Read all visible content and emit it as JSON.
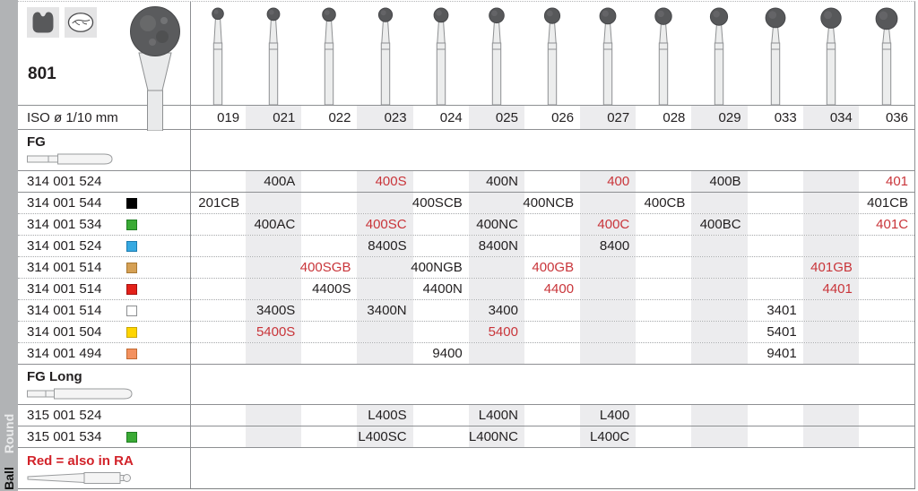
{
  "header": {
    "product_number": "801",
    "icons": [
      "crown-indication-icon",
      "tooth-indication-icon"
    ]
  },
  "sidebar": {
    "group_label": "Round",
    "shape_label": "Ball"
  },
  "table": {
    "iso_label": "ISO ø 1/10 mm",
    "columns": [
      "019",
      "021",
      "022",
      "023",
      "024",
      "025",
      "026",
      "027",
      "028",
      "029",
      "033",
      "034",
      "036"
    ],
    "footnote": "Red = also in RA",
    "sections": [
      {
        "id": "fg",
        "label": "FG",
        "rows": [
          {
            "code": "314 001 524",
            "square": null,
            "cells": [
              {
                "col": "021",
                "text": "400A",
                "red": false
              },
              {
                "col": "023",
                "text": "400S",
                "red": true
              },
              {
                "col": "025",
                "text": "400N",
                "red": false
              },
              {
                "col": "027",
                "text": "400",
                "red": true
              },
              {
                "col": "029",
                "text": "400B",
                "red": false
              },
              {
                "col": "036",
                "text": "401",
                "red": true
              }
            ]
          },
          {
            "code": "314 001 544",
            "square": "black",
            "cells": [
              {
                "col": "019",
                "text": "201CB",
                "red": false
              },
              {
                "col": "024",
                "text": "400SCB",
                "red": false
              },
              {
                "col": "026",
                "text": "400NCB",
                "red": false
              },
              {
                "col": "028",
                "text": "400CB",
                "red": false
              },
              {
                "col": "036",
                "text": "401CB",
                "red": false
              }
            ]
          },
          {
            "code": "314 001 534",
            "square": "green",
            "cells": [
              {
                "col": "021",
                "text": "400AC",
                "red": false
              },
              {
                "col": "023",
                "text": "400SC",
                "red": true
              },
              {
                "col": "025",
                "text": "400NC",
                "red": false
              },
              {
                "col": "027",
                "text": "400C",
                "red": true
              },
              {
                "col": "029",
                "text": "400BC",
                "red": false
              },
              {
                "col": "036",
                "text": "401C",
                "red": true
              }
            ]
          },
          {
            "code": "314 001 524",
            "square": "blue",
            "cells": [
              {
                "col": "023",
                "text": "8400S",
                "red": false
              },
              {
                "col": "025",
                "text": "8400N",
                "red": false
              },
              {
                "col": "027",
                "text": "8400",
                "red": false
              }
            ]
          },
          {
            "code": "314 001 514",
            "square": "gold",
            "cells": [
              {
                "col": "022",
                "text": "400SGB",
                "red": true
              },
              {
                "col": "024",
                "text": "400NGB",
                "red": false
              },
              {
                "col": "026",
                "text": "400GB",
                "red": true
              },
              {
                "col": "034",
                "text": "401GB",
                "red": true
              }
            ]
          },
          {
            "code": "314 001 514",
            "square": "red",
            "cells": [
              {
                "col": "022",
                "text": "4400S",
                "red": false
              },
              {
                "col": "024",
                "text": "4400N",
                "red": false
              },
              {
                "col": "026",
                "text": "4400",
                "red": true
              },
              {
                "col": "034",
                "text": "4401",
                "red": true
              }
            ]
          },
          {
            "code": "314 001 514",
            "square": "white",
            "cells": [
              {
                "col": "021",
                "text": "3400S",
                "red": false
              },
              {
                "col": "023",
                "text": "3400N",
                "red": false
              },
              {
                "col": "025",
                "text": "3400",
                "red": false
              },
              {
                "col": "033",
                "text": "3401",
                "red": false
              }
            ]
          },
          {
            "code": "314 001 504",
            "square": "yellow",
            "cells": [
              {
                "col": "021",
                "text": "5400S",
                "red": true
              },
              {
                "col": "025",
                "text": "5400",
                "red": true
              },
              {
                "col": "033",
                "text": "5401",
                "red": false
              }
            ]
          },
          {
            "code": "314 001 494",
            "square": "orange",
            "cells": [
              {
                "col": "024",
                "text": "9400",
                "red": false
              },
              {
                "col": "033",
                "text": "9401",
                "red": false
              }
            ]
          }
        ]
      },
      {
        "id": "fg_long",
        "label": "FG Long",
        "rows": [
          {
            "code": "315 001 524",
            "square": null,
            "cells": [
              {
                "col": "023",
                "text": "L400S",
                "red": false
              },
              {
                "col": "025",
                "text": "L400N",
                "red": false
              },
              {
                "col": "027",
                "text": "L400",
                "red": false
              }
            ]
          },
          {
            "code": "315 001 534",
            "square": "green",
            "cells": [
              {
                "col": "023",
                "text": "L400SC",
                "red": false
              },
              {
                "col": "025",
                "text": "L400NC",
                "red": false
              },
              {
                "col": "027",
                "text": "L400C",
                "red": false
              }
            ]
          }
        ]
      }
    ]
  },
  "colors": {
    "accent_red": "#c9353a",
    "note_red": "#d2232a",
    "stripe": "#ececee",
    "sidebar_gray": "#b1b3b5",
    "squares": {
      "black": "#000000",
      "green": "#3aaa35",
      "blue": "#36a9e1",
      "gold": "#d5a054",
      "red": "#e32119",
      "white": "#ffffff",
      "yellow": "#ffd500",
      "orange": "#f3915f"
    },
    "square_borders": {
      "black": "#000000",
      "green": "#1f7d22",
      "blue": "#1c7cb0",
      "gold": "#a87934",
      "red": "#a51111",
      "white": "#8d8f92",
      "yellow": "#c7a600",
      "orange": "#c26a32"
    }
  }
}
